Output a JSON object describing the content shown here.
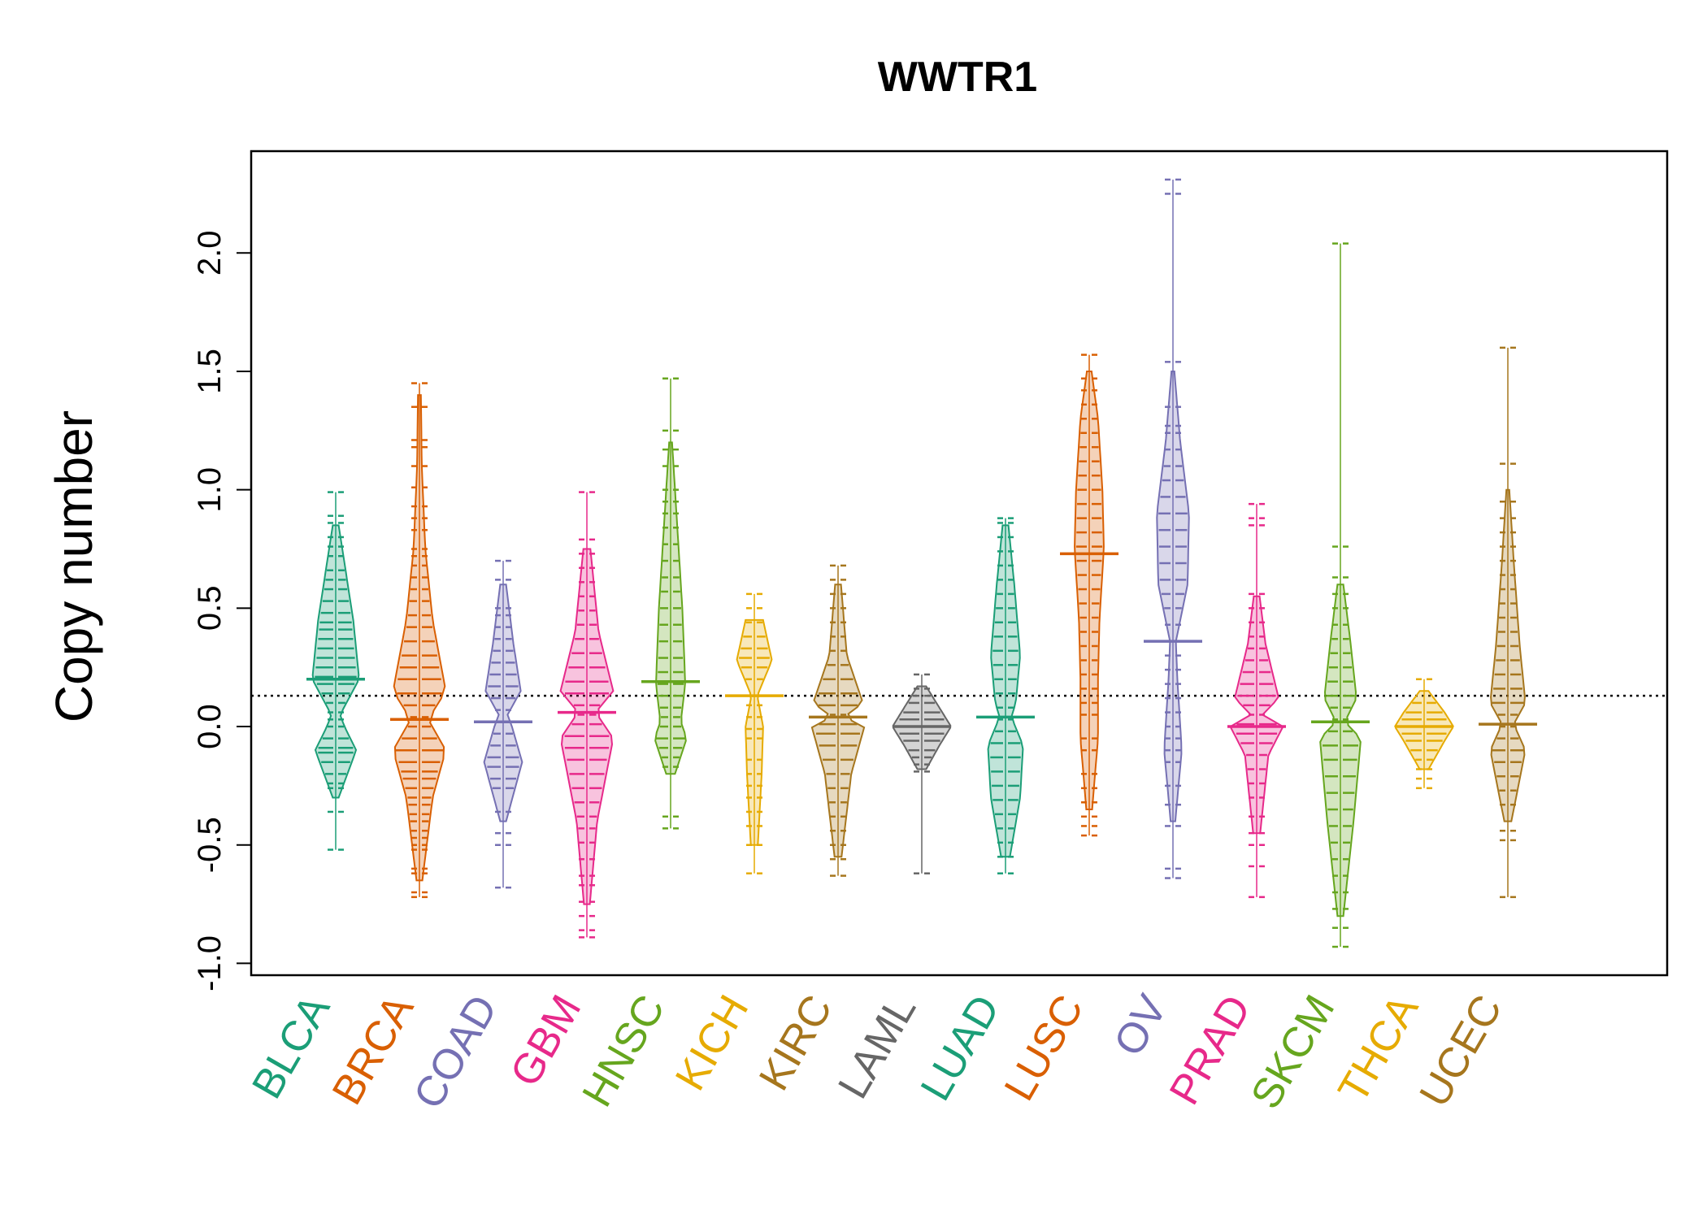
{
  "chart_data": {
    "type": "beanplot",
    "title": "WWTR1",
    "xlabel": "",
    "ylabel": "Copy number",
    "ylim": [
      -1.05,
      2.43
    ],
    "yticks": [
      -1.0,
      -0.5,
      0.0,
      0.5,
      1.0,
      1.5,
      2.0
    ],
    "ytick_labels": [
      "-1.0",
      "-0.5",
      "0.0",
      "0.5",
      "1.0",
      "1.5",
      "2.0"
    ],
    "reference_line": 0.13,
    "grid": false,
    "legend": "none",
    "categories": [
      "BLCA",
      "BRCA",
      "COAD",
      "GBM",
      "HNSC",
      "KICH",
      "KIRC",
      "LAML",
      "LUAD",
      "LUSC",
      "OV",
      "PRAD",
      "SKCM",
      "THCA",
      "UCEC"
    ],
    "colors": [
      "#1b9e77",
      "#d95f02",
      "#7570b3",
      "#e7298a",
      "#66a61e",
      "#e6ab02",
      "#a6761d",
      "#666666",
      "#1b9e77",
      "#d95f02",
      "#7570b3",
      "#e7298a",
      "#66a61e",
      "#e6ab02",
      "#a6761d"
    ],
    "series": [
      {
        "category": "BLCA",
        "mean": 0.2,
        "min": -0.52,
        "max": 0.99,
        "density": [
          [
            -0.3,
            0.1
          ],
          [
            -0.1,
            0.7
          ],
          [
            0.0,
            0.3
          ],
          [
            0.05,
            0.15
          ],
          [
            0.2,
            0.8
          ],
          [
            0.45,
            0.6
          ],
          [
            0.65,
            0.35
          ],
          [
            0.85,
            0.1
          ]
        ],
        "points": [
          -0.52,
          -0.36,
          -0.26,
          -0.24,
          -0.2,
          -0.15,
          -0.11,
          -0.09,
          -0.05,
          0.0,
          0.03,
          0.06,
          0.1,
          0.14,
          0.18,
          0.21,
          0.25,
          0.29,
          0.33,
          0.37,
          0.41,
          0.44,
          0.48,
          0.53,
          0.58,
          0.62,
          0.66,
          0.72,
          0.76,
          0.8,
          0.86,
          0.89,
          0.99
        ]
      },
      {
        "category": "BRCA",
        "mean": 0.03,
        "min": -0.72,
        "max": 1.45,
        "density": [
          [
            -0.65,
            0.1
          ],
          [
            -0.3,
            0.45
          ],
          [
            -0.1,
            0.9
          ],
          [
            0.03,
            0.3
          ],
          [
            0.15,
            0.9
          ],
          [
            0.45,
            0.45
          ],
          [
            0.75,
            0.2
          ],
          [
            1.1,
            0.08
          ],
          [
            1.4,
            0.05
          ]
        ],
        "points": [
          -0.72,
          -0.7,
          -0.62,
          -0.6,
          -0.52,
          -0.5,
          -0.47,
          -0.44,
          -0.4,
          -0.37,
          -0.33,
          -0.3,
          -0.26,
          -0.22,
          -0.19,
          -0.15,
          -0.1,
          -0.05,
          0.0,
          0.04,
          0.09,
          0.14,
          0.2,
          0.25,
          0.3,
          0.36,
          0.42,
          0.47,
          0.53,
          0.58,
          0.63,
          0.68,
          0.72,
          0.75,
          0.83,
          0.88,
          0.93,
          1.01,
          1.1,
          1.18,
          1.21,
          1.35,
          1.45
        ]
      },
      {
        "category": "COAD",
        "mean": 0.02,
        "min": -0.68,
        "max": 0.7,
        "density": [
          [
            -0.4,
            0.1
          ],
          [
            -0.15,
            0.65
          ],
          [
            0.0,
            0.3
          ],
          [
            0.05,
            0.15
          ],
          [
            0.15,
            0.6
          ],
          [
            0.35,
            0.35
          ],
          [
            0.6,
            0.1
          ]
        ],
        "points": [
          -0.68,
          -0.5,
          -0.45,
          -0.36,
          -0.26,
          -0.22,
          -0.17,
          -0.13,
          -0.08,
          -0.03,
          0.02,
          0.07,
          0.12,
          0.17,
          0.22,
          0.27,
          0.32,
          0.37,
          0.42,
          0.47,
          0.5,
          0.62,
          0.7
        ]
      },
      {
        "category": "GBM",
        "mean": 0.06,
        "min": -0.89,
        "max": 0.99,
        "density": [
          [
            -0.75,
            0.1
          ],
          [
            -0.4,
            0.35
          ],
          [
            -0.05,
            0.9
          ],
          [
            0.06,
            0.3
          ],
          [
            0.15,
            0.9
          ],
          [
            0.4,
            0.4
          ],
          [
            0.75,
            0.12
          ]
        ],
        "points": [
          -0.89,
          -0.86,
          -0.8,
          -0.74,
          -0.67,
          -0.63,
          -0.56,
          -0.49,
          -0.43,
          -0.38,
          -0.32,
          -0.26,
          -0.2,
          -0.14,
          -0.09,
          -0.04,
          0.01,
          0.05,
          0.09,
          0.14,
          0.19,
          0.25,
          0.31,
          0.37,
          0.43,
          0.49,
          0.55,
          0.61,
          0.67,
          0.73,
          0.79,
          0.99
        ]
      },
      {
        "category": "HNSC",
        "mean": 0.19,
        "min": -0.43,
        "max": 1.47,
        "density": [
          [
            -0.2,
            0.15
          ],
          [
            -0.05,
            0.55
          ],
          [
            0.02,
            0.35
          ],
          [
            0.18,
            0.5
          ],
          [
            0.5,
            0.4
          ],
          [
            0.9,
            0.2
          ],
          [
            1.2,
            0.05
          ]
        ],
        "points": [
          -0.43,
          -0.38,
          -0.17,
          -0.13,
          -0.09,
          -0.05,
          0.0,
          0.04,
          0.08,
          0.13,
          0.18,
          0.23,
          0.29,
          0.36,
          0.43,
          0.5,
          0.57,
          0.63,
          0.7,
          0.77,
          0.84,
          0.9,
          0.95,
          1.0,
          1.1,
          1.17,
          1.25,
          1.47
        ]
      },
      {
        "category": "KICH",
        "mean": 0.13,
        "min": -0.62,
        "max": 0.56,
        "density": [
          [
            -0.5,
            0.12
          ],
          [
            -0.2,
            0.25
          ],
          [
            0.0,
            0.3
          ],
          [
            0.13,
            0.1
          ],
          [
            0.28,
            0.6
          ],
          [
            0.45,
            0.3
          ]
        ],
        "points": [
          -0.62,
          -0.5,
          -0.42,
          -0.36,
          -0.3,
          -0.25,
          -0.2,
          -0.14,
          -0.05,
          -0.01,
          0.04,
          0.09,
          0.2,
          0.25,
          0.29,
          0.33,
          0.38,
          0.44,
          0.5,
          0.56
        ]
      },
      {
        "category": "KIRC",
        "mean": 0.04,
        "min": -0.63,
        "max": 0.68,
        "density": [
          [
            -0.55,
            0.12
          ],
          [
            -0.2,
            0.45
          ],
          [
            0.0,
            0.9
          ],
          [
            0.04,
            0.2
          ],
          [
            0.1,
            0.85
          ],
          [
            0.3,
            0.3
          ],
          [
            0.6,
            0.1
          ]
        ],
        "points": [
          -0.63,
          -0.56,
          -0.5,
          -0.44,
          -0.38,
          -0.32,
          -0.26,
          -0.2,
          -0.14,
          -0.08,
          -0.03,
          0.01,
          0.05,
          0.09,
          0.14,
          0.2,
          0.26,
          0.32,
          0.38,
          0.44,
          0.5,
          0.56,
          0.62,
          0.68
        ]
      },
      {
        "category": "LAML",
        "mean": 0.0,
        "min": -0.62,
        "max": 0.22,
        "density": [
          [
            -0.18,
            0.15
          ],
          [
            -0.08,
            0.6
          ],
          [
            0.0,
            1.0
          ],
          [
            0.08,
            0.6
          ],
          [
            0.17,
            0.15
          ]
        ],
        "points": [
          -0.62,
          -0.19,
          -0.16,
          -0.13,
          -0.1,
          -0.06,
          -0.03,
          0.0,
          0.03,
          0.06,
          0.1,
          0.13,
          0.16,
          0.22
        ]
      },
      {
        "category": "LUAD",
        "mean": 0.04,
        "min": -0.62,
        "max": 0.88,
        "density": [
          [
            -0.55,
            0.15
          ],
          [
            -0.3,
            0.5
          ],
          [
            -0.08,
            0.6
          ],
          [
            0.04,
            0.2
          ],
          [
            0.1,
            0.35
          ],
          [
            0.3,
            0.5
          ],
          [
            0.6,
            0.3
          ],
          [
            0.85,
            0.1
          ]
        ],
        "points": [
          -0.62,
          -0.55,
          -0.49,
          -0.43,
          -0.37,
          -0.31,
          -0.25,
          -0.19,
          -0.13,
          -0.07,
          -0.02,
          0.03,
          0.08,
          0.14,
          0.2,
          0.26,
          0.32,
          0.38,
          0.44,
          0.5,
          0.56,
          0.62,
          0.68,
          0.74,
          0.8,
          0.86,
          0.88
        ]
      },
      {
        "category": "LUSC",
        "mean": 0.73,
        "min": -0.46,
        "max": 1.57,
        "density": [
          [
            -0.35,
            0.1
          ],
          [
            -0.05,
            0.3
          ],
          [
            0.2,
            0.3
          ],
          [
            0.45,
            0.35
          ],
          [
            0.75,
            0.5
          ],
          [
            1.0,
            0.45
          ],
          [
            1.3,
            0.3
          ],
          [
            1.5,
            0.08
          ]
        ],
        "points": [
          -0.46,
          -0.42,
          -0.38,
          -0.32,
          -0.26,
          -0.2,
          -0.1,
          -0.05,
          0.05,
          0.1,
          0.16,
          0.22,
          0.28,
          0.34,
          0.4,
          0.46,
          0.52,
          0.58,
          0.64,
          0.7,
          0.76,
          0.82,
          0.88,
          0.94,
          1.0,
          1.06,
          1.12,
          1.18,
          1.24,
          1.3,
          1.36,
          1.42,
          1.47,
          1.57
        ]
      },
      {
        "category": "OV",
        "mean": 0.36,
        "min": -0.64,
        "max": 2.31,
        "density": [
          [
            -0.4,
            0.08
          ],
          [
            -0.1,
            0.3
          ],
          [
            0.2,
            0.15
          ],
          [
            0.36,
            0.1
          ],
          [
            0.6,
            0.5
          ],
          [
            0.9,
            0.55
          ],
          [
            1.2,
            0.25
          ],
          [
            1.5,
            0.05
          ]
        ],
        "points": [
          -0.64,
          -0.6,
          -0.42,
          -0.33,
          -0.25,
          -0.15,
          -0.1,
          -0.05,
          0.0,
          0.06,
          0.12,
          0.18,
          0.24,
          0.3,
          0.36,
          0.43,
          0.5,
          0.56,
          0.62,
          0.69,
          0.76,
          0.83,
          0.9,
          0.97,
          1.04,
          1.1,
          1.17,
          1.24,
          1.27,
          1.35,
          1.54,
          2.25,
          2.31
        ]
      },
      {
        "category": "PRAD",
        "mean": 0.0,
        "min": -0.72,
        "max": 0.94,
        "density": [
          [
            -0.45,
            0.12
          ],
          [
            -0.12,
            0.4
          ],
          [
            0.0,
            0.9
          ],
          [
            0.05,
            0.2
          ],
          [
            0.12,
            0.75
          ],
          [
            0.35,
            0.3
          ],
          [
            0.55,
            0.1
          ]
        ],
        "points": [
          -0.72,
          -0.59,
          -0.5,
          -0.45,
          -0.38,
          -0.3,
          -0.24,
          -0.18,
          -0.12,
          -0.07,
          -0.03,
          0.01,
          0.05,
          0.09,
          0.13,
          0.18,
          0.23,
          0.28,
          0.33,
          0.38,
          0.44,
          0.5,
          0.56,
          0.85,
          0.88,
          0.94
        ]
      },
      {
        "category": "SKCM",
        "mean": 0.02,
        "min": -0.93,
        "max": 2.04,
        "density": [
          [
            -0.8,
            0.1
          ],
          [
            -0.4,
            0.45
          ],
          [
            -0.05,
            0.7
          ],
          [
            0.02,
            0.15
          ],
          [
            0.12,
            0.55
          ],
          [
            0.35,
            0.35
          ],
          [
            0.6,
            0.1
          ]
        ],
        "points": [
          -0.93,
          -0.85,
          -0.77,
          -0.7,
          -0.63,
          -0.56,
          -0.49,
          -0.42,
          -0.35,
          -0.28,
          -0.21,
          -0.14,
          -0.08,
          -0.02,
          0.03,
          0.08,
          0.13,
          0.19,
          0.25,
          0.31,
          0.37,
          0.43,
          0.5,
          0.56,
          0.63,
          0.76,
          2.04
        ]
      },
      {
        "category": "THCA",
        "mean": 0.0,
        "min": -0.26,
        "max": 0.2,
        "density": [
          [
            -0.18,
            0.15
          ],
          [
            -0.06,
            0.7
          ],
          [
            0.0,
            1.0
          ],
          [
            0.06,
            0.7
          ],
          [
            0.15,
            0.15
          ]
        ],
        "points": [
          -0.26,
          -0.22,
          -0.18,
          -0.14,
          -0.1,
          -0.06,
          -0.03,
          0.0,
          0.03,
          0.06,
          0.1,
          0.2
        ]
      },
      {
        "category": "UCEC",
        "mean": 0.01,
        "min": -0.72,
        "max": 1.6,
        "density": [
          [
            -0.4,
            0.12
          ],
          [
            -0.1,
            0.6
          ],
          [
            0.01,
            0.2
          ],
          [
            0.1,
            0.6
          ],
          [
            0.35,
            0.4
          ],
          [
            0.7,
            0.2
          ],
          [
            1.0,
            0.05
          ]
        ],
        "points": [
          -0.72,
          -0.48,
          -0.44,
          -0.33,
          -0.27,
          -0.21,
          -0.15,
          -0.1,
          -0.05,
          0.0,
          0.05,
          0.1,
          0.16,
          0.22,
          0.28,
          0.34,
          0.4,
          0.46,
          0.52,
          0.58,
          0.64,
          0.7,
          0.76,
          0.82,
          0.88,
          0.95,
          1.11,
          1.6
        ]
      }
    ]
  }
}
